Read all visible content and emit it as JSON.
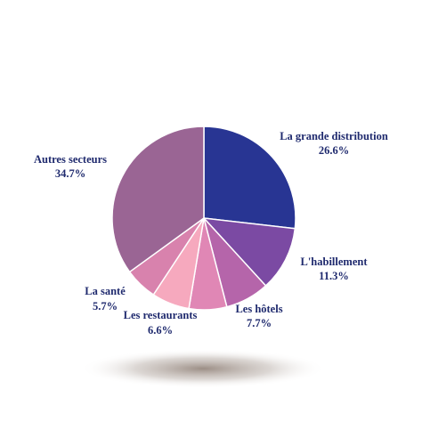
{
  "chart_data": {
    "type": "pie",
    "slices": [
      {
        "label": "La grande distribution",
        "value": 26.6,
        "value_label": "26.6%",
        "color": "#283593"
      },
      {
        "label": "L'habillement",
        "value": 11.3,
        "value_label": "11.3%",
        "color": "#7b4aa3"
      },
      {
        "label": "Les hôtels",
        "value": 7.7,
        "value_label": "7.7%",
        "color": "#b565aa"
      },
      {
        "label": "Les restaurants",
        "value": 6.6,
        "value_label": "6.6%",
        "color": "#e087b5"
      },
      {
        "label": "",
        "value": 6.6,
        "value_label": "",
        "color": "#f6a9be"
      },
      {
        "label": "La santé",
        "value": 5.7,
        "value_label": "5.7%",
        "color": "#d882ad"
      },
      {
        "label": "Autres secteurs",
        "value": 34.7,
        "value_label": "34.7%",
        "color": "#9a6594"
      }
    ],
    "start": "12 o'clock",
    "direction": "clockwise",
    "legend": "none",
    "shadow_color": "#8a7a70"
  }
}
